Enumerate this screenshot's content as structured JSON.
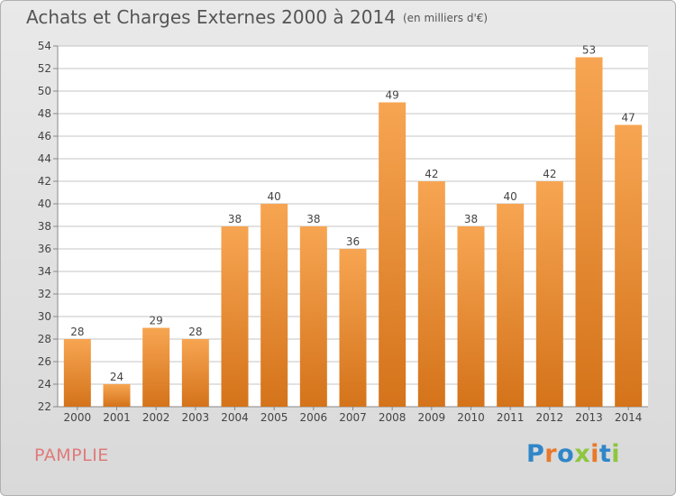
{
  "title": "Achats et Charges Externes 2000 à 2014",
  "subtitle": "(en milliers d'€)",
  "commune": "PAMPLIE",
  "logo": {
    "text": "Proxiti",
    "letter_colors": [
      "#2f86c8",
      "#e8792b",
      "#2f86c8",
      "#8dc63f",
      "#e8792b",
      "#2f86c8",
      "#8dc63f"
    ]
  },
  "colors": {
    "bar_light": "#f7a552",
    "bar_dark": "#d4731a",
    "grid": "#c4c4c4",
    "axis_text": "#444444"
  },
  "chart_data": {
    "type": "bar",
    "title": "Achats et Charges Externes 2000 à 2014",
    "subtitle": "(en milliers d'€)",
    "categories": [
      "2000",
      "2001",
      "2002",
      "2003",
      "2004",
      "2005",
      "2006",
      "2007",
      "2008",
      "2009",
      "2010",
      "2011",
      "2012",
      "2013",
      "2014"
    ],
    "values": [
      28,
      24,
      29,
      28,
      38,
      40,
      38,
      36,
      49,
      42,
      38,
      40,
      42,
      53,
      47
    ],
    "ylim": [
      22,
      54
    ],
    "yticks": [
      22,
      24,
      26,
      28,
      30,
      32,
      34,
      36,
      38,
      40,
      42,
      44,
      46,
      48,
      50,
      52,
      54
    ],
    "grid": true,
    "data_labels": true
  }
}
